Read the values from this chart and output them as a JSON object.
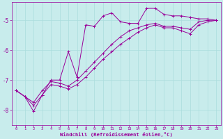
{
  "xlabel": "Windchill (Refroidissement éolien,°C)",
  "background_color": "#c8ecec",
  "grid_color": "#aadddd",
  "line_color": "#990099",
  "xlim": [
    -0.5,
    23.5
  ],
  "ylim": [
    -8.5,
    -4.4
  ],
  "yticks": [
    -8,
    -7,
    -6,
    -5
  ],
  "series": [
    {
      "x": [
        0,
        1,
        2,
        3,
        4,
        5,
        6,
        7,
        8,
        9,
        10,
        11,
        12,
        13,
        14,
        15,
        16,
        17,
        18,
        19,
        20,
        21,
        22,
        23
      ],
      "y": [
        -7.35,
        -7.55,
        -8.05,
        -7.5,
        -7.0,
        -7.0,
        -6.05,
        -6.9,
        -5.15,
        -5.2,
        -4.85,
        -4.75,
        -5.05,
        -5.1,
        -5.1,
        -4.6,
        -4.6,
        -4.8,
        -4.85,
        -4.85,
        -4.9,
        -4.95,
        -4.95,
        -5.0
      ]
    },
    {
      "x": [
        0,
        1,
        2,
        3,
        4,
        5,
        6,
        7,
        8,
        9,
        10,
        11,
        12,
        13,
        14,
        15,
        16,
        17,
        18,
        19,
        20,
        21,
        22,
        23
      ],
      "y": [
        -7.35,
        -7.55,
        -7.75,
        -7.35,
        -7.05,
        -7.1,
        -7.2,
        -7.0,
        -6.7,
        -6.4,
        -6.1,
        -5.8,
        -5.55,
        -5.35,
        -5.25,
        -5.15,
        -5.1,
        -5.2,
        -5.2,
        -5.25,
        -5.3,
        -5.05,
        -5.0,
        -5.0
      ]
    },
    {
      "x": [
        0,
        1,
        2,
        3,
        4,
        5,
        6,
        7,
        8,
        9,
        10,
        11,
        12,
        13,
        14,
        15,
        16,
        17,
        18,
        19,
        20,
        21,
        22,
        23
      ],
      "y": [
        -7.35,
        -7.55,
        -7.85,
        -7.5,
        -7.15,
        -7.2,
        -7.3,
        -7.15,
        -6.9,
        -6.6,
        -6.3,
        -6.05,
        -5.8,
        -5.6,
        -5.4,
        -5.25,
        -5.15,
        -5.25,
        -5.25,
        -5.35,
        -5.45,
        -5.15,
        -5.05,
        -5.0
      ]
    }
  ]
}
